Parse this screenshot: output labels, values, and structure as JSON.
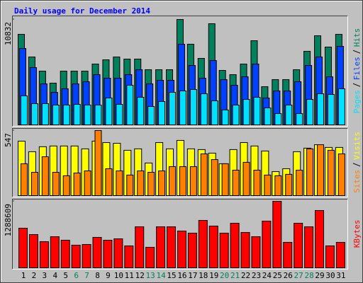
{
  "title": "Daily usage for December 2014",
  "chart_data": [
    {
      "type": "bar",
      "ylim": [
        0,
        10832
      ],
      "yticks": [
        10832
      ],
      "series": [
        {
          "name": "Hits",
          "color": "#00805c",
          "values": [
            9306,
            6979,
            5525,
            4289,
            5525,
            5525,
            5525,
            6252,
            6688,
            6979,
            6761,
            6761,
            5671,
            5671,
            5671,
            10832,
            8288,
            6834,
            10396,
            5598,
            5162,
            6252,
            8651,
            3926,
            4653,
            4653,
            5671,
            7561,
            9160,
            7997,
            9306
          ]
        },
        {
          "name": "Files",
          "color": "#0040ff",
          "values": [
            7852,
            5889,
            4217,
            3344,
            3708,
            4217,
            4435,
            5162,
            4798,
            4798,
            5162,
            5671,
            4217,
            4580,
            4580,
            8288,
            6107,
            4798,
            6616,
            4653,
            4071,
            4944,
            6252,
            2763,
            3490,
            3490,
            4435,
            6107,
            6979,
            4944,
            8070
          ]
        },
        {
          "name": "Pages",
          "color": "#00e0ff",
          "values": [
            2981,
            2181,
            2181,
            2036,
            2036,
            2108,
            2036,
            2036,
            2763,
            2108,
            4071,
            2835,
            1890,
            2399,
            3344,
            3490,
            3635,
            3199,
            2472,
            1527,
            2036,
            2617,
            2835,
            1745,
            1163,
            2036,
            1163,
            2617,
            3199,
            3126,
            3708
          ]
        }
      ]
    },
    {
      "type": "bar",
      "ylim": [
        0,
        547
      ],
      "yticks": [
        547
      ],
      "series": [
        {
          "name": "Visits",
          "color": "#ffff00",
          "values": [
            458,
            369,
            411,
            417,
            417,
            417,
            393,
            458,
            446,
            440,
            381,
            393,
            274,
            446,
            393,
            464,
            393,
            387,
            357,
            268,
            387,
            446,
            417,
            375,
            202,
            226,
            369,
            399,
            428,
            405,
            405
          ]
        },
        {
          "name": "Sites",
          "color": "#ff8000",
          "values": [
            268,
            196,
            327,
            196,
            167,
            190,
            208,
            547,
            226,
            208,
            173,
            208,
            196,
            208,
            244,
            244,
            244,
            351,
            303,
            268,
            214,
            280,
            214,
            173,
            167,
            179,
            214,
            393,
            428,
            381,
            351
          ]
        }
      ]
    },
    {
      "type": "bar",
      "ylim": [
        0,
        1288609
      ],
      "yticks": [
        1288609
      ],
      "categories": [
        "1",
        "2",
        "3",
        "4",
        "5",
        "6",
        "7",
        "8",
        "9",
        "10",
        "11",
        "12",
        "13",
        "14",
        "15",
        "16",
        "17",
        "18",
        "19",
        "20",
        "21",
        "22",
        "23",
        "24",
        "25",
        "26",
        "27",
        "28",
        "29",
        "30",
        "31"
      ],
      "category_colors": [
        "#000000",
        "#000000",
        "#000000",
        "#000000",
        "#000000",
        "#00805c",
        "#00805c",
        "#000000",
        "#000000",
        "#000000",
        "#000000",
        "#000000",
        "#00805c",
        "#00805c",
        "#000000",
        "#000000",
        "#000000",
        "#000000",
        "#000000",
        "#00805c",
        "#00805c",
        "#000000",
        "#000000",
        "#000000",
        "#000000",
        "#000000",
        "#00805c",
        "#00805c",
        "#000000",
        "#000000",
        "#000000"
      ],
      "series": [
        {
          "name": "KBytes",
          "color": "#ff0000",
          "values": [
            767700,
            644323,
            507233,
            603196,
            534651,
            438688,
            452397,
            589487,
            534651,
            562069,
            424979,
            795122,
            397561,
            795122,
            795122,
            712868,
            671741,
            918503,
            808831,
            671741,
            863667,
            685450,
            603196,
            904794,
            1288609,
            493524,
            863667,
            795122,
            1110429,
            424979,
            493524
          ]
        }
      ]
    }
  ]
}
